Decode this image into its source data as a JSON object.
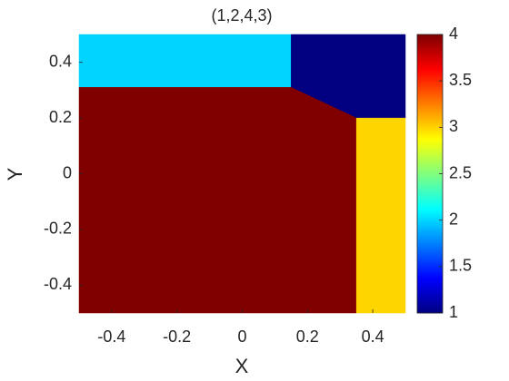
{
  "chart_data": {
    "type": "region",
    "title": "(1,2,4,3)",
    "xlabel": "X",
    "ylabel": "Y",
    "xlim": [
      -0.5,
      0.5
    ],
    "ylim": [
      -0.5,
      0.5
    ],
    "xticks": [
      -0.4,
      -0.2,
      0,
      0.2,
      0.4
    ],
    "yticks": [
      -0.4,
      -0.2,
      0,
      0.2,
      0.4
    ],
    "colormap": "jet",
    "clim": [
      1,
      4
    ],
    "cticks": [
      1,
      1.5,
      2,
      2.5,
      3,
      3.5,
      4
    ],
    "regions": [
      {
        "value": 2,
        "x": [
          -0.5,
          0.15,
          0.15,
          -0.5
        ],
        "y": [
          0.31,
          0.31,
          0.5,
          0.5
        ]
      },
      {
        "value": 1,
        "x": [
          0.15,
          0.5,
          0.5,
          0.35,
          0.15
        ],
        "y": [
          0.5,
          0.5,
          0.2,
          0.2,
          0.31
        ]
      },
      {
        "value": 4,
        "x": [
          -0.5,
          0.35,
          0.35,
          0.15,
          -0.5
        ],
        "y": [
          -0.5,
          -0.5,
          0.2,
          0.31,
          0.31
        ]
      },
      {
        "value": 3,
        "x": [
          0.35,
          0.5,
          0.5,
          0.35
        ],
        "y": [
          -0.5,
          -0.5,
          0.2,
          0.2
        ]
      }
    ]
  }
}
